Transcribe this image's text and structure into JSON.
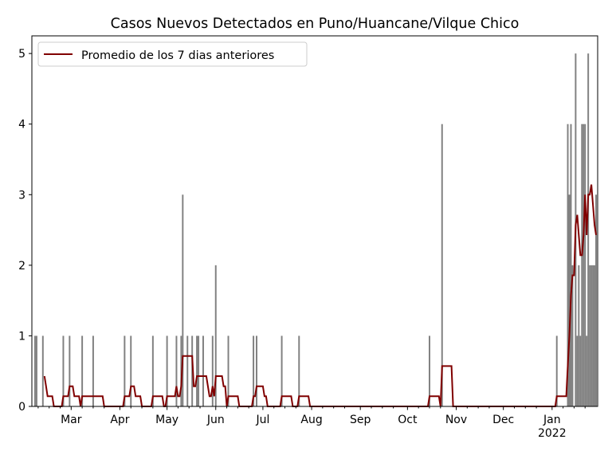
{
  "chart_data": {
    "type": "bar",
    "title": "Casos Nuevos Detectados en Puno/Huancane/Vilque Chico",
    "xlabel": "",
    "ylabel": "",
    "xlim": [
      "2021-02-04",
      "2022-01-30"
    ],
    "ylim": [
      0,
      5.25
    ],
    "yticks": [
      0,
      1,
      2,
      3,
      4,
      5
    ],
    "xticks": [
      {
        "date": "2021-03-01",
        "label": "Mar"
      },
      {
        "date": "2021-04-01",
        "label": "Apr"
      },
      {
        "date": "2021-05-01",
        "label": "May"
      },
      {
        "date": "2021-06-01",
        "label": "Jun"
      },
      {
        "date": "2021-07-01",
        "label": "Jul"
      },
      {
        "date": "2021-08-01",
        "label": "Aug"
      },
      {
        "date": "2021-09-01",
        "label": "Sep"
      },
      {
        "date": "2021-10-01",
        "label": "Oct"
      },
      {
        "date": "2021-11-01",
        "label": "Nov"
      },
      {
        "date": "2021-12-01",
        "label": "Dec"
      },
      {
        "date": "2022-01-01",
        "label": "Jan\n2022"
      }
    ],
    "bar_color": "#808080",
    "line_color": "#800000",
    "legend": {
      "position": "upper-left",
      "entries": [
        "Promedio de los 7 dias anteriores"
      ]
    },
    "series": [
      {
        "type": "bar",
        "start": "2021-02-06",
        "end": "2022-01-29",
        "nonzero_days": {
          "2021-02-06": 1,
          "2021-02-07": 1,
          "2021-02-11": 1,
          "2021-02-24": 1,
          "2021-02-28": 1,
          "2021-03-08": 1,
          "2021-03-15": 1,
          "2021-04-04": 1,
          "2021-04-08": 1,
          "2021-04-22": 1,
          "2021-05-01": 1,
          "2021-05-07": 1,
          "2021-05-10": 1,
          "2021-05-11": 3,
          "2021-05-14": 1,
          "2021-05-17": 1,
          "2021-05-20": 1,
          "2021-05-21": 1,
          "2021-05-24": 1,
          "2021-05-30": 1,
          "2021-06-01": 2,
          "2021-06-09": 1,
          "2021-06-25": 1,
          "2021-06-27": 1,
          "2021-07-13": 1,
          "2021-07-24": 1,
          "2021-10-15": 1,
          "2021-10-23": 4,
          "2022-01-04": 1,
          "2022-01-11": 4,
          "2022-01-12": 3,
          "2022-01-13": 4,
          "2022-01-14": 2,
          "2022-01-16": 5,
          "2022-01-17": 1,
          "2022-01-18": 2,
          "2022-01-19": 1,
          "2022-01-20": 4,
          "2022-01-21": 4,
          "2022-01-22": 4,
          "2022-01-23": 1,
          "2022-01-24": 5,
          "2022-01-25": 2,
          "2022-01-26": 2,
          "2022-01-27": 2,
          "2022-01-28": 2,
          "2022-01-29": 3
        }
      },
      {
        "type": "line",
        "name": "Promedio de los 7 dias anteriores",
        "window": 7
      }
    ]
  }
}
